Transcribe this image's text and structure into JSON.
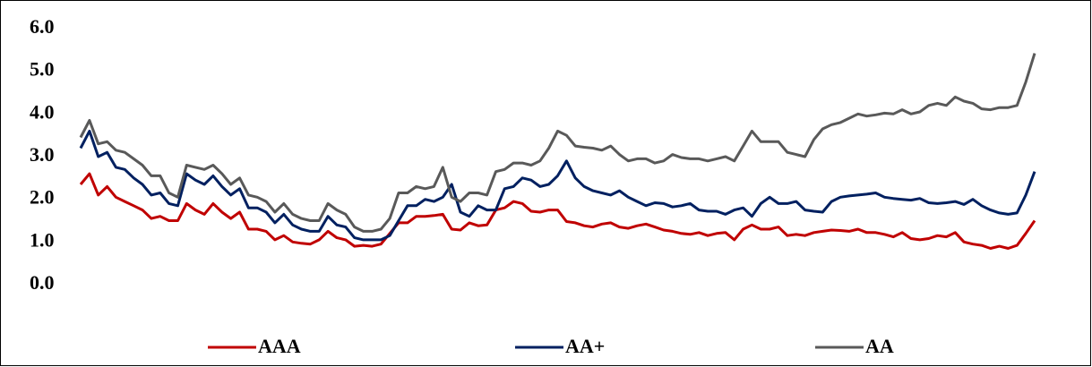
{
  "chart_data": {
    "type": "line",
    "ylim": [
      0,
      6
    ],
    "yticks": [
      {
        "value": 0,
        "label": "0.0"
      },
      {
        "value": 1,
        "label": "1.0"
      },
      {
        "value": 2,
        "label": "2.0"
      },
      {
        "value": 3,
        "label": "3.0"
      },
      {
        "value": 4,
        "label": "4.0"
      },
      {
        "value": 5,
        "label": "5.0"
      },
      {
        "value": 6,
        "label": "6.0"
      }
    ],
    "legend": "bottom",
    "series": [
      {
        "name": "AAA",
        "color": "#c00000",
        "values": [
          2.35,
          2.6,
          2.1,
          2.3,
          2.05,
          1.95,
          1.85,
          1.75,
          1.55,
          1.6,
          1.5,
          1.5,
          1.9,
          1.75,
          1.65,
          1.9,
          1.7,
          1.55,
          1.7,
          1.3,
          1.3,
          1.25,
          1.05,
          1.15,
          1.0,
          0.97,
          0.95,
          1.05,
          1.25,
          1.1,
          1.05,
          0.9,
          0.92,
          0.9,
          0.95,
          1.2,
          1.45,
          1.45,
          1.6,
          1.6,
          1.62,
          1.65,
          1.3,
          1.28,
          1.45,
          1.38,
          1.4,
          1.75,
          1.8,
          1.95,
          1.9,
          1.72,
          1.7,
          1.75,
          1.75,
          1.48,
          1.45,
          1.38,
          1.35,
          1.42,
          1.45,
          1.35,
          1.32,
          1.38,
          1.42,
          1.35,
          1.28,
          1.25,
          1.2,
          1.18,
          1.22,
          1.15,
          1.2,
          1.22,
          1.05,
          1.3,
          1.4,
          1.3,
          1.3,
          1.35,
          1.15,
          1.18,
          1.15,
          1.22,
          1.25,
          1.28,
          1.27,
          1.25,
          1.3,
          1.22,
          1.22,
          1.18,
          1.12,
          1.22,
          1.08,
          1.05,
          1.08,
          1.15,
          1.12,
          1.22,
          1.0,
          0.95,
          0.92,
          0.85,
          0.9,
          0.85,
          0.92,
          1.2,
          1.5
        ]
      },
      {
        "name": "AA+",
        "color": "#002060",
        "values": [
          3.2,
          3.6,
          3.0,
          3.1,
          2.75,
          2.7,
          2.5,
          2.35,
          2.1,
          2.15,
          1.9,
          1.85,
          2.6,
          2.45,
          2.35,
          2.55,
          2.3,
          2.1,
          2.25,
          1.8,
          1.8,
          1.7,
          1.45,
          1.65,
          1.4,
          1.3,
          1.25,
          1.25,
          1.6,
          1.4,
          1.35,
          1.1,
          1.05,
          1.05,
          1.05,
          1.15,
          1.5,
          1.85,
          1.85,
          2.0,
          1.95,
          2.05,
          2.35,
          1.7,
          1.6,
          1.85,
          1.75,
          1.75,
          2.25,
          2.3,
          2.5,
          2.45,
          2.3,
          2.35,
          2.55,
          2.9,
          2.5,
          2.3,
          2.2,
          2.15,
          2.1,
          2.2,
          2.05,
          1.95,
          1.85,
          1.92,
          1.9,
          1.82,
          1.85,
          1.9,
          1.75,
          1.72,
          1.72,
          1.65,
          1.75,
          1.8,
          1.6,
          1.9,
          2.05,
          1.9,
          1.9,
          1.95,
          1.75,
          1.72,
          1.7,
          1.95,
          2.05,
          2.08,
          2.1,
          2.12,
          2.15,
          2.05,
          2.02,
          2.0,
          1.98,
          2.02,
          1.92,
          1.9,
          1.92,
          1.95,
          1.88,
          2.0,
          1.85,
          1.75,
          1.68,
          1.65,
          1.68,
          2.1,
          2.65
        ]
      },
      {
        "name": "AA",
        "color": "#595959",
        "values": [
          3.45,
          3.85,
          3.3,
          3.35,
          3.15,
          3.1,
          2.95,
          2.8,
          2.55,
          2.55,
          2.15,
          2.05,
          2.8,
          2.75,
          2.7,
          2.8,
          2.6,
          2.35,
          2.5,
          2.1,
          2.05,
          1.95,
          1.7,
          1.9,
          1.65,
          1.55,
          1.5,
          1.5,
          1.9,
          1.75,
          1.65,
          1.35,
          1.25,
          1.25,
          1.3,
          1.55,
          2.15,
          2.15,
          2.3,
          2.25,
          2.3,
          2.75,
          2.05,
          1.95,
          2.15,
          2.15,
          2.1,
          2.65,
          2.7,
          2.85,
          2.85,
          2.8,
          2.9,
          3.2,
          3.6,
          3.5,
          3.25,
          3.22,
          3.2,
          3.15,
          3.25,
          3.05,
          2.9,
          2.95,
          2.95,
          2.85,
          2.9,
          3.05,
          2.98,
          2.95,
          2.95,
          2.9,
          2.95,
          3.0,
          2.9,
          3.25,
          3.6,
          3.35,
          3.35,
          3.35,
          3.1,
          3.05,
          3.0,
          3.4,
          3.65,
          3.75,
          3.8,
          3.9,
          4.0,
          3.95,
          3.98,
          4.02,
          4.0,
          4.1,
          4.0,
          4.05,
          4.2,
          4.25,
          4.2,
          4.4,
          4.3,
          4.25,
          4.12,
          4.1,
          4.15,
          4.15,
          4.2,
          4.75,
          5.42
        ]
      }
    ]
  }
}
